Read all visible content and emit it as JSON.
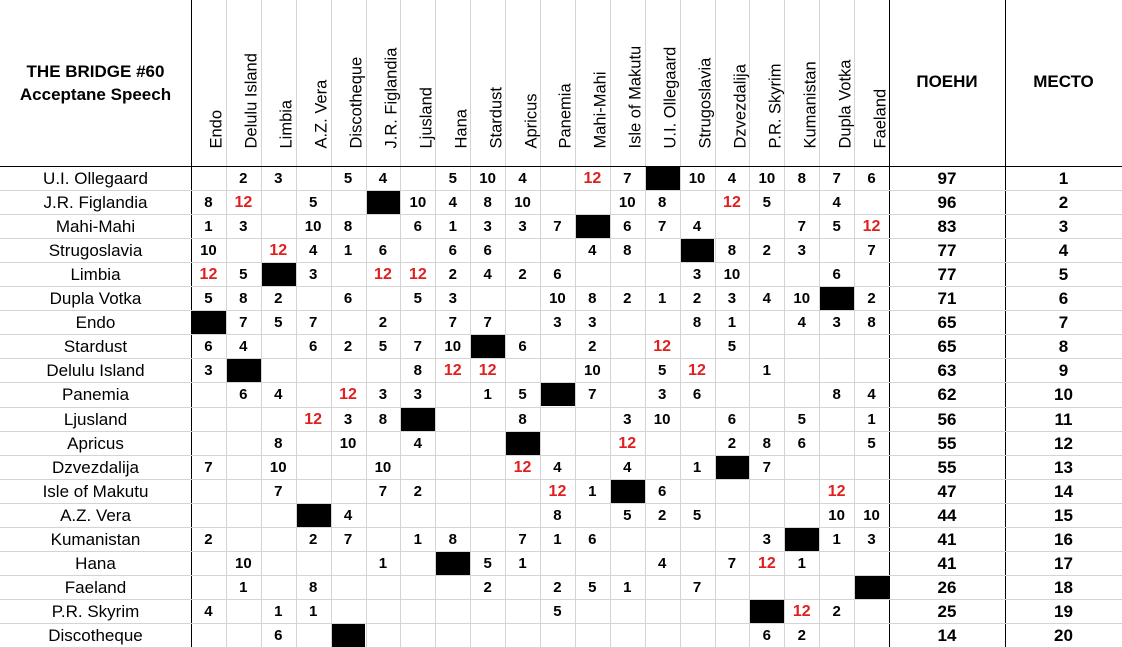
{
  "title_line1": "THE BRIDGE #60",
  "title_line2": "Acceptane Speech",
  "points_header": "ПОЕНИ",
  "place_header": "МЕСТО",
  "highlight_color": "#e02020",
  "voters": [
    "Endo",
    "Delulu Island",
    "Limbia",
    "A.Z. Vera",
    "Discotheque",
    "J.R. Figlandia",
    "Ljusland",
    "Hana",
    "Stardust",
    "Apricus",
    "Panemia",
    "Mahi-Mahi",
    "Isle of Makutu",
    "U.I. Ollegaard",
    "Strugoslavia",
    "Dzvezdalija",
    "P.R. Skyrim",
    "Kumanistan",
    "Dupla Votka",
    "Faeland"
  ],
  "rows": [
    {
      "name": "U.I. Ollegaard",
      "points": "97",
      "place": "1",
      "votes": [
        "",
        "2",
        "3",
        "",
        "5",
        "4",
        "",
        "5",
        "10",
        "4",
        "",
        "12",
        "7",
        "X",
        "10",
        "4",
        "10",
        "8",
        "7",
        "6"
      ]
    },
    {
      "name": "J.R. Figlandia",
      "points": "96",
      "place": "2",
      "votes": [
        "8",
        "12",
        "",
        "5",
        "",
        "X",
        "10",
        "4",
        "8",
        "10",
        "",
        "",
        "10",
        "8",
        "",
        "12",
        "5",
        "",
        "4",
        ""
      ]
    },
    {
      "name": "Mahi-Mahi",
      "points": "83",
      "place": "3",
      "votes": [
        "1",
        "3",
        "",
        "10",
        "8",
        "",
        "6",
        "1",
        "3",
        "3",
        "7",
        "X",
        "6",
        "7",
        "4",
        "",
        "",
        "7",
        "5",
        "12"
      ]
    },
    {
      "name": "Strugoslavia",
      "points": "77",
      "place": "4",
      "votes": [
        "10",
        "",
        "12",
        "4",
        "1",
        "6",
        "",
        "6",
        "6",
        "",
        "",
        "4",
        "8",
        "",
        "X",
        "8",
        "2",
        "3",
        "",
        "7"
      ]
    },
    {
      "name": "Limbia",
      "points": "77",
      "place": "5",
      "votes": [
        "12",
        "5",
        "X",
        "3",
        "",
        "12",
        "12",
        "2",
        "4",
        "2",
        "6",
        "",
        "",
        "",
        "3",
        "10",
        "",
        "",
        "6",
        ""
      ]
    },
    {
      "name": "Dupla Votka",
      "points": "71",
      "place": "6",
      "votes": [
        "5",
        "8",
        "2",
        "",
        "6",
        "",
        "5",
        "3",
        "",
        "",
        "10",
        "8",
        "2",
        "1",
        "2",
        "3",
        "4",
        "10",
        "X",
        "2"
      ]
    },
    {
      "name": "Endo",
      "points": "65",
      "place": "7",
      "votes": [
        "X",
        "7",
        "5",
        "7",
        "",
        "2",
        "",
        "7",
        "7",
        "",
        "3",
        "3",
        "",
        "",
        "8",
        "1",
        "",
        "4",
        "3",
        "8"
      ]
    },
    {
      "name": "Stardust",
      "points": "65",
      "place": "8",
      "votes": [
        "6",
        "4",
        "",
        "6",
        "2",
        "5",
        "7",
        "10",
        "X",
        "6",
        "",
        "2",
        "",
        "12",
        "",
        "5",
        "",
        "",
        "",
        ""
      ]
    },
    {
      "name": "Delulu Island",
      "points": "63",
      "place": "9",
      "votes": [
        "3",
        "X",
        "",
        "",
        "",
        "",
        "8",
        "12",
        "12",
        "",
        "",
        "10",
        "",
        "5",
        "12",
        "",
        "1",
        "",
        "",
        ""
      ]
    },
    {
      "name": "Panemia",
      "points": "62",
      "place": "10",
      "votes": [
        "",
        "6",
        "4",
        "",
        "12",
        "3",
        "3",
        "",
        "1",
        "5",
        "X",
        "7",
        "",
        "3",
        "6",
        "",
        "",
        "",
        "8",
        "4"
      ]
    },
    {
      "name": "Ljusland",
      "points": "56",
      "place": "11",
      "votes": [
        "",
        "",
        "",
        "12",
        "3",
        "8",
        "X",
        "",
        "",
        "8",
        "",
        "",
        "3",
        "10",
        "",
        "6",
        "",
        "5",
        "",
        "1"
      ]
    },
    {
      "name": "Apricus",
      "points": "55",
      "place": "12",
      "votes": [
        "",
        "",
        "8",
        "",
        "10",
        "",
        "4",
        "",
        "",
        "X",
        "",
        "",
        "12",
        "",
        "",
        "2",
        "8",
        "6",
        "",
        "5"
      ]
    },
    {
      "name": "Dzvezdalija",
      "points": "55",
      "place": "13",
      "votes": [
        "7",
        "",
        "10",
        "",
        "",
        "10",
        "",
        "",
        "",
        "12",
        "4",
        "",
        "4",
        "",
        "1",
        "X",
        "7",
        "",
        "",
        ""
      ]
    },
    {
      "name": "Isle of Makutu",
      "points": "47",
      "place": "14",
      "votes": [
        "",
        "",
        "7",
        "",
        "",
        "7",
        "2",
        "",
        "",
        "",
        "12",
        "1",
        "X",
        "6",
        "",
        "",
        "",
        "",
        "12",
        ""
      ]
    },
    {
      "name": "A.Z. Vera",
      "points": "44",
      "place": "15",
      "votes": [
        "",
        "",
        "",
        "X",
        "4",
        "",
        "",
        "",
        "",
        "",
        "8",
        "",
        "5",
        "2",
        "5",
        "",
        "",
        "",
        "10",
        "10"
      ]
    },
    {
      "name": "Kumanistan",
      "points": "41",
      "place": "16",
      "votes": [
        "2",
        "",
        "",
        "2",
        "7",
        "",
        "1",
        "8",
        "",
        "7",
        "1",
        "6",
        "",
        "",
        "",
        "",
        "3",
        "X",
        "1",
        "3"
      ]
    },
    {
      "name": "Hana",
      "points": "41",
      "place": "17",
      "votes": [
        "",
        "10",
        "",
        "",
        "",
        "1",
        "",
        "X",
        "5",
        "1",
        "",
        "",
        "",
        "4",
        "",
        "7",
        "12",
        "1",
        "",
        ""
      ]
    },
    {
      "name": "Faeland",
      "points": "26",
      "place": "18",
      "votes": [
        "",
        "1",
        "",
        "8",
        "",
        "",
        "",
        "",
        "2",
        "",
        "2",
        "5",
        "1",
        "",
        "7",
        "",
        "",
        "",
        "",
        "X"
      ]
    },
    {
      "name": "P.R. Skyrim",
      "points": "25",
      "place": "19",
      "votes": [
        "4",
        "",
        "1",
        "1",
        "",
        "",
        "",
        "",
        "",
        "",
        "5",
        "",
        "",
        "",
        "",
        "",
        "X",
        "12",
        "2",
        ""
      ]
    },
    {
      "name": "Discotheque",
      "points": "14",
      "place": "20",
      "votes": [
        "",
        "",
        "6",
        "",
        "X",
        "",
        "",
        "",
        "",
        "",
        "",
        "",
        "",
        "",
        "",
        "",
        "6",
        "2",
        "",
        ""
      ]
    }
  ]
}
